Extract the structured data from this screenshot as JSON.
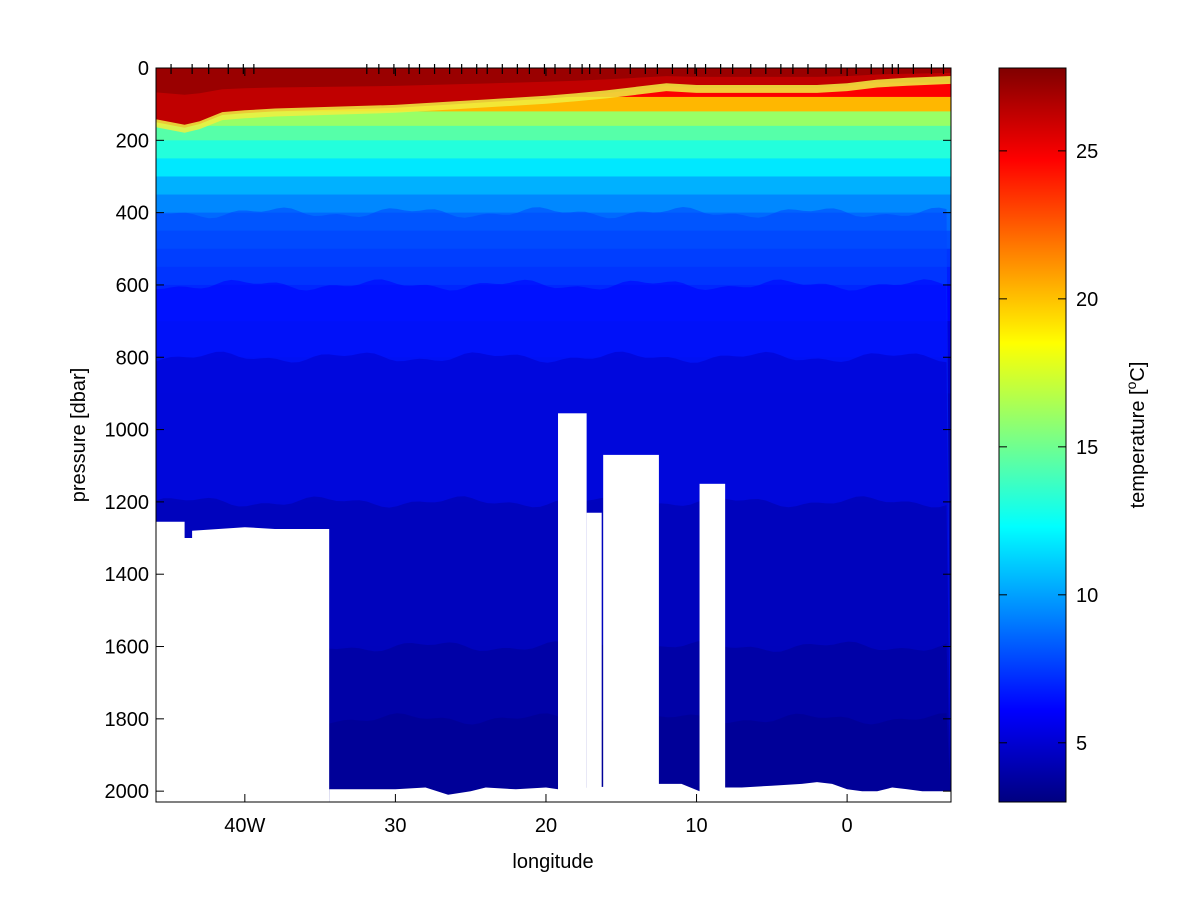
{
  "chart_data": {
    "type": "heatmap",
    "title": "",
    "xlabel": "longitude",
    "ylabel": "pressure [dbar]",
    "colorbar_label": "temperature [",
    "colorbar_label_sup": "o",
    "colorbar_label_unit": "C]",
    "x_ticks": [
      {
        "value": -40,
        "label": "40W"
      },
      {
        "value": -30,
        "label": "30"
      },
      {
        "value": -20,
        "label": "20"
      },
      {
        "value": -10,
        "label": "10"
      },
      {
        "value": 0,
        "label": "0"
      }
    ],
    "y_ticks": [
      {
        "value": 0,
        "label": "0"
      },
      {
        "value": 200,
        "label": "200"
      },
      {
        "value": 400,
        "label": "400"
      },
      {
        "value": 600,
        "label": "600"
      },
      {
        "value": 800,
        "label": "800"
      },
      {
        "value": 1000,
        "label": "1000"
      },
      {
        "value": 1200,
        "label": "1200"
      },
      {
        "value": 1400,
        "label": "1400"
      },
      {
        "value": 1600,
        "label": "1600"
      },
      {
        "value": 1800,
        "label": "1800"
      },
      {
        "value": 2000,
        "label": "2000"
      }
    ],
    "colorbar_ticks": [
      {
        "value": 5,
        "label": "5"
      },
      {
        "value": 10,
        "label": "10"
      },
      {
        "value": 15,
        "label": "15"
      },
      {
        "value": 20,
        "label": "20"
      },
      {
        "value": 25,
        "label": "25"
      }
    ],
    "xlim": [
      -45.9,
      6.9
    ],
    "ylim": [
      2030,
      0
    ],
    "clim": [
      3.0,
      27.8
    ],
    "colormap": "jet",
    "station_longitudes": [
      -44.9,
      -43.5,
      -42.4,
      -41.1,
      -40.1,
      -39.4,
      -31.9,
      -31.1,
      -30.1,
      -29.1,
      -28.4,
      -27.4,
      -26.4,
      -25.6,
      -24.6,
      -23.9,
      -22.9,
      -21.9,
      -21.1,
      -20.1,
      -19.4,
      -18.4,
      -17.6,
      -17.1,
      -16.4,
      -15.4,
      -14.4,
      -13.4,
      -12.6,
      -11.6,
      -10.6,
      -10.1,
      -9.4,
      -8.4,
      -7.6,
      -6.4,
      -5.4,
      -4.4,
      -3.6,
      -2.6,
      -1.4,
      -0.4,
      0.6,
      1.6,
      2.4,
      3.0,
      3.4,
      4.4,
      5.6,
      6.4
    ],
    "mixed_layer_bottom": {
      "x": [
        -45.9,
        -44.0,
        -43.0,
        -41.5,
        -40.0,
        -38.0,
        -30.0,
        -26.0,
        -24.0,
        -22.0,
        -20.0,
        -18.0,
        -16.0,
        -14.0,
        -12.0,
        -10.0,
        -8.0,
        -6.0,
        -4.0,
        -2.0,
        0.0,
        2.0,
        4.0,
        6.9
      ],
      "depth": [
        150,
        165,
        155,
        130,
        125,
        120,
        110,
        100,
        95,
        90,
        85,
        78,
        70,
        60,
        50,
        55,
        55,
        55,
        55,
        55,
        50,
        40,
        35,
        30
      ]
    },
    "temperature_profile": {
      "pressure": [
        0,
        40,
        80,
        120,
        160,
        200,
        250,
        300,
        350,
        400,
        450,
        500,
        550,
        600,
        700,
        800,
        900,
        1000,
        1200,
        1400,
        1600,
        1800,
        2000,
        2030
      ],
      "temperature": [
        27.5,
        26.0,
        23.5,
        17.0,
        15.0,
        13.8,
        12.5,
        11.0,
        9.8,
        9.0,
        8.3,
        7.7,
        7.1,
        6.6,
        5.7,
        5.0,
        4.6,
        4.3,
        4.0,
        3.8,
        3.6,
        3.4,
        3.2,
        3.1
      ]
    },
    "land_mask": [
      {
        "x0": -45.9,
        "x1": -34.4,
        "bottom_from": 2030,
        "top_x": [
          -45.9,
          -44.0,
          -44.0,
          -43.5,
          -43.5,
          -40.0,
          -38.0,
          -34.4
        ],
        "top_depth": [
          1255,
          1255,
          1300,
          1300,
          1280,
          1270,
          1275,
          1275
        ]
      },
      {
        "x0": -19.2,
        "x1": -17.3,
        "top_depth": 955
      },
      {
        "x0": -17.3,
        "x1": -16.3,
        "top_depth": 1230
      },
      {
        "x0": -16.2,
        "x1": -12.5,
        "top_depth": 1070
      },
      {
        "x0": -9.8,
        "x1": -8.1,
        "top_depth": 1150
      }
    ],
    "sea_floor": {
      "x": [
        -34.4,
        -32.0,
        -30.0,
        -28.0,
        -26.5,
        -25.0,
        -24.0,
        -22.0,
        -20.0,
        -19.2,
        -12.5,
        -11.0,
        -9.8,
        -8.1,
        -7.0,
        -5.0,
        -3.0,
        -2.0,
        -1.0,
        0.0,
        1.0,
        2.0,
        3.0,
        4.0,
        5.0,
        6.9
      ],
      "depth": [
        1995,
        1995,
        1995,
        1990,
        2010,
        2000,
        1990,
        1995,
        1990,
        1995,
        1980,
        1980,
        2000,
        1990,
        1990,
        1985,
        1980,
        1975,
        1980,
        1995,
        2000,
        2000,
        1990,
        1995,
        2000,
        2000
      ]
    }
  }
}
